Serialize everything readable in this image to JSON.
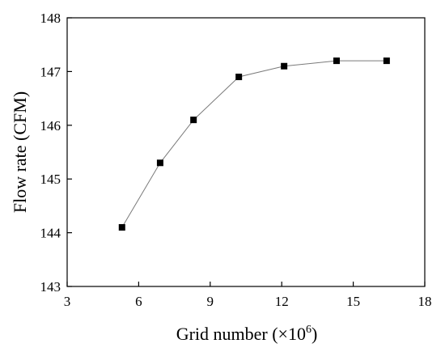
{
  "chart_data": {
    "type": "line",
    "title": "",
    "xlabel": "Grid number (×10",
    "xlabel_exponent": "6",
    "xlabel_suffix": ")",
    "ylabel": "Flow rate (CFM)",
    "xlim": [
      3,
      18
    ],
    "ylim": [
      143,
      148
    ],
    "xticks": [
      3,
      6,
      9,
      12,
      15,
      18
    ],
    "yticks": [
      143,
      144,
      145,
      146,
      147,
      148
    ],
    "grid": false,
    "legend": "none",
    "marker": "square",
    "series": [
      {
        "x": [
          5.3,
          6.9,
          8.3,
          10.2,
          12.1,
          14.3,
          16.4
        ],
        "y": [
          144.1,
          145.3,
          146.1,
          146.9,
          147.1,
          147.2,
          147.2
        ],
        "color": "#000000",
        "line_color": "#7a7a7a"
      }
    ]
  }
}
